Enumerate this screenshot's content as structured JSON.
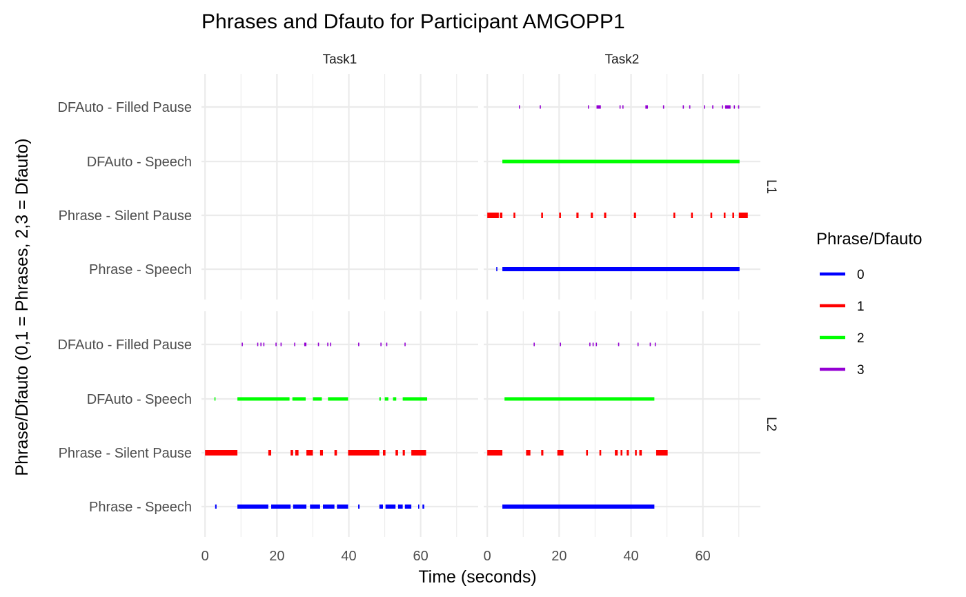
{
  "chart_data": {
    "type": "timeline",
    "title": "Phrases and Dfauto for Participant AMGOPP1",
    "xlabel": "Time (seconds)",
    "ylabel": "Phrase/Dfauto (0,1 = Phrases, 2,3 = Dfauto)",
    "x_ticks": [
      0,
      20,
      40,
      60
    ],
    "xlim": [
      -1,
      76
    ],
    "y_categories": [
      "Phrase - Speech",
      "Phrase - Silent Pause",
      "DFAuto - Speech",
      "DFAuto - Filled Pause"
    ],
    "columns": [
      "Task1",
      "Task2"
    ],
    "rows": [
      "L1",
      "L2"
    ],
    "grid": true,
    "legend": {
      "title": "Phrase/Dfauto",
      "position": "right",
      "items": [
        {
          "label": "0",
          "color": "#0000FF"
        },
        {
          "label": "1",
          "color": "#FF0000"
        },
        {
          "label": "2",
          "color": "#00FF00"
        },
        {
          "label": "3",
          "color": "#9400D3"
        }
      ]
    },
    "panels": [
      {
        "column": "Task1",
        "row": "L1",
        "segments": []
      },
      {
        "column": "Task2",
        "row": "L1",
        "segments": [
          {
            "category": 0,
            "code": "0",
            "start": 2.5,
            "end": 2.8
          },
          {
            "category": 0,
            "code": "0",
            "start": 4.2,
            "end": 70.2
          },
          {
            "category": 1,
            "code": "1",
            "start": 0.0,
            "end": 3.2
          },
          {
            "category": 1,
            "code": "1",
            "start": 3.5,
            "end": 4.2
          },
          {
            "category": 1,
            "code": "1",
            "start": 7.3,
            "end": 7.8
          },
          {
            "category": 1,
            "code": "1",
            "start": 15.0,
            "end": 15.5
          },
          {
            "category": 1,
            "code": "1",
            "start": 20.0,
            "end": 20.5
          },
          {
            "category": 1,
            "code": "1",
            "start": 24.8,
            "end": 25.4
          },
          {
            "category": 1,
            "code": "1",
            "start": 28.8,
            "end": 29.4
          },
          {
            "category": 1,
            "code": "1",
            "start": 32.5,
            "end": 33.1
          },
          {
            "category": 1,
            "code": "1",
            "start": 40.8,
            "end": 41.4
          },
          {
            "category": 1,
            "code": "1",
            "start": 51.8,
            "end": 52.3
          },
          {
            "category": 1,
            "code": "1",
            "start": 56.7,
            "end": 57.2
          },
          {
            "category": 1,
            "code": "1",
            "start": 62.1,
            "end": 62.6
          },
          {
            "category": 1,
            "code": "1",
            "start": 65.8,
            "end": 66.3
          },
          {
            "category": 1,
            "code": "1",
            "start": 68.2,
            "end": 68.7
          },
          {
            "category": 1,
            "code": "1",
            "start": 70.0,
            "end": 72.5
          },
          {
            "category": 2,
            "code": "2",
            "start": 4.2,
            "end": 70.2
          },
          {
            "category": 3,
            "code": "3",
            "start": 8.8,
            "end": 9.1
          },
          {
            "category": 3,
            "code": "3",
            "start": 14.6,
            "end": 14.9
          },
          {
            "category": 3,
            "code": "3",
            "start": 28.0,
            "end": 28.3
          },
          {
            "category": 3,
            "code": "3",
            "start": 30.4,
            "end": 31.6
          },
          {
            "category": 3,
            "code": "3",
            "start": 36.8,
            "end": 37.1
          },
          {
            "category": 3,
            "code": "3",
            "start": 37.6,
            "end": 37.9
          },
          {
            "category": 3,
            "code": "3",
            "start": 44.0,
            "end": 44.7
          },
          {
            "category": 3,
            "code": "3",
            "start": 48.9,
            "end": 49.2
          },
          {
            "category": 3,
            "code": "3",
            "start": 54.4,
            "end": 54.7
          },
          {
            "category": 3,
            "code": "3",
            "start": 56.2,
            "end": 56.5
          },
          {
            "category": 3,
            "code": "3",
            "start": 60.3,
            "end": 60.6
          },
          {
            "category": 3,
            "code": "3",
            "start": 62.6,
            "end": 62.9
          },
          {
            "category": 3,
            "code": "3",
            "start": 65.3,
            "end": 65.6
          },
          {
            "category": 3,
            "code": "3",
            "start": 66.2,
            "end": 67.7
          },
          {
            "category": 3,
            "code": "3",
            "start": 68.6,
            "end": 68.9
          },
          {
            "category": 3,
            "code": "3",
            "start": 69.8,
            "end": 70.1
          }
        ]
      },
      {
        "column": "Task1",
        "row": "L2",
        "segments": [
          {
            "category": 0,
            "code": "0",
            "start": 2.8,
            "end": 3.2
          },
          {
            "category": 0,
            "code": "0",
            "start": 9.0,
            "end": 17.6
          },
          {
            "category": 0,
            "code": "0",
            "start": 18.4,
            "end": 23.8
          },
          {
            "category": 0,
            "code": "0",
            "start": 24.5,
            "end": 28.2
          },
          {
            "category": 0,
            "code": "0",
            "start": 29.2,
            "end": 32.0
          },
          {
            "category": 0,
            "code": "0",
            "start": 32.8,
            "end": 36.0
          },
          {
            "category": 0,
            "code": "0",
            "start": 36.7,
            "end": 39.8
          },
          {
            "category": 0,
            "code": "0",
            "start": 42.6,
            "end": 43.0
          },
          {
            "category": 0,
            "code": "0",
            "start": 48.5,
            "end": 49.5
          },
          {
            "category": 0,
            "code": "0",
            "start": 50.2,
            "end": 53.0
          },
          {
            "category": 0,
            "code": "0",
            "start": 53.7,
            "end": 55.0
          },
          {
            "category": 0,
            "code": "0",
            "start": 55.6,
            "end": 57.4
          },
          {
            "category": 0,
            "code": "0",
            "start": 59.3,
            "end": 59.6
          },
          {
            "category": 0,
            "code": "0",
            "start": 60.5,
            "end": 61.0
          },
          {
            "category": 1,
            "code": "1",
            "start": 0.0,
            "end": 9.0
          },
          {
            "category": 1,
            "code": "1",
            "start": 17.6,
            "end": 18.4
          },
          {
            "category": 1,
            "code": "1",
            "start": 23.8,
            "end": 24.5
          },
          {
            "category": 1,
            "code": "1",
            "start": 25.1,
            "end": 26.0
          },
          {
            "category": 1,
            "code": "1",
            "start": 28.2,
            "end": 30.0
          },
          {
            "category": 1,
            "code": "1",
            "start": 32.0,
            "end": 32.8
          },
          {
            "category": 1,
            "code": "1",
            "start": 36.0,
            "end": 36.7
          },
          {
            "category": 1,
            "code": "1",
            "start": 39.8,
            "end": 48.5
          },
          {
            "category": 1,
            "code": "1",
            "start": 49.5,
            "end": 50.2
          },
          {
            "category": 1,
            "code": "1",
            "start": 53.0,
            "end": 53.7
          },
          {
            "category": 1,
            "code": "1",
            "start": 55.0,
            "end": 55.6
          },
          {
            "category": 1,
            "code": "1",
            "start": 57.4,
            "end": 61.5
          },
          {
            "category": 2,
            "code": "2",
            "start": 2.6,
            "end": 2.9
          },
          {
            "category": 2,
            "code": "2",
            "start": 9.0,
            "end": 23.5
          },
          {
            "category": 2,
            "code": "2",
            "start": 24.3,
            "end": 28.0
          },
          {
            "category": 2,
            "code": "2",
            "start": 30.0,
            "end": 32.5
          },
          {
            "category": 2,
            "code": "2",
            "start": 34.2,
            "end": 39.8
          },
          {
            "category": 2,
            "code": "2",
            "start": 48.5,
            "end": 48.9
          },
          {
            "category": 2,
            "code": "2",
            "start": 50.0,
            "end": 51.0
          },
          {
            "category": 2,
            "code": "2",
            "start": 52.3,
            "end": 53.2
          },
          {
            "category": 2,
            "code": "2",
            "start": 55.0,
            "end": 61.8
          },
          {
            "category": 3,
            "code": "3",
            "start": 10.2,
            "end": 10.5
          },
          {
            "category": 3,
            "code": "3",
            "start": 14.5,
            "end": 14.8
          },
          {
            "category": 3,
            "code": "3",
            "start": 15.4,
            "end": 15.7
          },
          {
            "category": 3,
            "code": "3",
            "start": 16.2,
            "end": 16.5
          },
          {
            "category": 3,
            "code": "3",
            "start": 19.6,
            "end": 19.9
          },
          {
            "category": 3,
            "code": "3",
            "start": 21.0,
            "end": 21.3
          },
          {
            "category": 3,
            "code": "3",
            "start": 24.8,
            "end": 25.1
          },
          {
            "category": 3,
            "code": "3",
            "start": 27.6,
            "end": 28.2
          },
          {
            "category": 3,
            "code": "3",
            "start": 31.4,
            "end": 31.7
          },
          {
            "category": 3,
            "code": "3",
            "start": 34.0,
            "end": 34.3
          },
          {
            "category": 3,
            "code": "3",
            "start": 34.8,
            "end": 35.1
          },
          {
            "category": 3,
            "code": "3",
            "start": 42.6,
            "end": 42.9
          },
          {
            "category": 3,
            "code": "3",
            "start": 48.8,
            "end": 49.1
          },
          {
            "category": 3,
            "code": "3",
            "start": 50.4,
            "end": 50.7
          },
          {
            "category": 3,
            "code": "3",
            "start": 55.5,
            "end": 55.8
          }
        ]
      },
      {
        "column": "Task2",
        "row": "L2",
        "segments": [
          {
            "category": 0,
            "code": "0",
            "start": 4.2,
            "end": 46.5
          },
          {
            "category": 1,
            "code": "1",
            "start": 0.0,
            "end": 4.2
          },
          {
            "category": 1,
            "code": "1",
            "start": 10.8,
            "end": 12.0
          },
          {
            "category": 1,
            "code": "1",
            "start": 15.0,
            "end": 15.6
          },
          {
            "category": 1,
            "code": "1",
            "start": 19.5,
            "end": 21.2
          },
          {
            "category": 1,
            "code": "1",
            "start": 27.5,
            "end": 28.0
          },
          {
            "category": 1,
            "code": "1",
            "start": 31.2,
            "end": 31.7
          },
          {
            "category": 1,
            "code": "1",
            "start": 35.5,
            "end": 36.3
          },
          {
            "category": 1,
            "code": "1",
            "start": 37.1,
            "end": 37.6
          },
          {
            "category": 1,
            "code": "1",
            "start": 38.8,
            "end": 39.4
          },
          {
            "category": 1,
            "code": "1",
            "start": 41.1,
            "end": 41.6
          },
          {
            "category": 1,
            "code": "1",
            "start": 42.3,
            "end": 43.0
          },
          {
            "category": 1,
            "code": "1",
            "start": 47.0,
            "end": 50.2
          },
          {
            "category": 2,
            "code": "2",
            "start": 4.8,
            "end": 46.5
          },
          {
            "category": 3,
            "code": "3",
            "start": 12.9,
            "end": 13.2
          },
          {
            "category": 3,
            "code": "3",
            "start": 20.2,
            "end": 20.5
          },
          {
            "category": 3,
            "code": "3",
            "start": 28.4,
            "end": 28.7
          },
          {
            "category": 3,
            "code": "3",
            "start": 29.3,
            "end": 29.6
          },
          {
            "category": 3,
            "code": "3",
            "start": 30.2,
            "end": 30.5
          },
          {
            "category": 3,
            "code": "3",
            "start": 36.4,
            "end": 36.7
          },
          {
            "category": 3,
            "code": "3",
            "start": 41.8,
            "end": 42.1
          },
          {
            "category": 3,
            "code": "3",
            "start": 45.2,
            "end": 45.5
          },
          {
            "category": 3,
            "code": "3",
            "start": 46.6,
            "end": 46.9
          }
        ]
      }
    ]
  }
}
